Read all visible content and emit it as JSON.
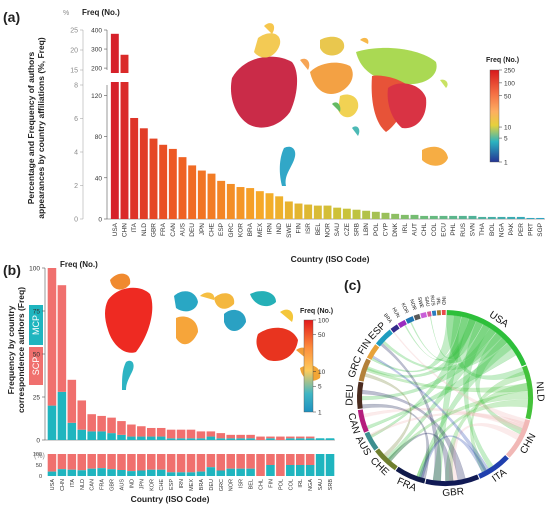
{
  "panel_a": {
    "tag": "(a)",
    "ylabel": "Percentage and Frequency of authors appearances by country affiliations (%, Freq)",
    "xlabel": "Country (ISO Code)",
    "freq_header": "Freq (No.)",
    "pct_header": "%",
    "freq_ticks": [
      "0",
      "40",
      "80",
      "120",
      "200",
      "300",
      "400"
    ],
    "pct_ticks": [
      "0",
      "2",
      "4",
      "6",
      "8",
      "15",
      "20",
      "25"
    ],
    "legend_title": "Freq (No.)",
    "legend_ticks": [
      "250",
      "100",
      "50",
      "10",
      "5",
      "1"
    ]
  },
  "panel_b": {
    "tag": "(b)",
    "ylabel": "Frequency by country correspondence authors (Freq)",
    "xlabel": "Country (ISO Code)",
    "freq_header": "Freq (No.)",
    "pct_label": "(%)",
    "freq_ticks": [
      "0",
      "25",
      "50",
      "75",
      "100"
    ],
    "pct_ticks": [
      "0",
      "50",
      "100"
    ],
    "legend_mcp": "MCP",
    "legend_scp": "SCP",
    "legend_title": "Freq (No.)",
    "legend_ticks": [
      "100",
      "50",
      "10",
      "5",
      "1"
    ]
  },
  "panel_c": {
    "tag": "(c)",
    "labels": [
      "USA",
      "NLD",
      "CHN",
      "ITA",
      "GBR",
      "FRA",
      "CHE",
      "AUS",
      "CAN",
      "DEU",
      "GRC",
      "FIN",
      "ESP",
      "BRA",
      "HUN",
      "KOR",
      "NOR",
      "SWE",
      "SAU",
      "RUS",
      "IRL",
      "IND"
    ]
  },
  "colors": {
    "mcp": "#1fb5bf",
    "scp": "#f0706e"
  },
  "chart_data": [
    {
      "type": "bar",
      "title": "",
      "xlabel": "Country (ISO Code)",
      "ylabel": "Percentage and Frequency of authors appearances by country affiliations (%, Freq)",
      "categories": [
        "USA",
        "CHN",
        "ITA",
        "NLD",
        "GBR",
        "FRA",
        "CAN",
        "AUS",
        "DEU",
        "JPN",
        "CHE",
        "ESP",
        "GRC",
        "KOR",
        "BRA",
        "MEX",
        "IRN",
        "IND",
        "SWE",
        "FIN",
        "ISR",
        "BEL",
        "NOR",
        "SAU",
        "CZE",
        "SRB",
        "LBN",
        "POL",
        "CYP",
        "DNK",
        "IRL",
        "AUT",
        "CHL",
        "COL",
        "ECU",
        "PHL",
        "RUS",
        "SVN",
        "THA",
        "BOL",
        "NGA",
        "PAK",
        "PER",
        "PRT",
        "SGP"
      ],
      "values": [
        380,
        270,
        98,
        88,
        78,
        72,
        68,
        60,
        52,
        47,
        44,
        37,
        34,
        31,
        30,
        27,
        25,
        22,
        17,
        15,
        14,
        13,
        13,
        11,
        10,
        9,
        8,
        7,
        6,
        5,
        4,
        4,
        3,
        3,
        3,
        3,
        3,
        3,
        2,
        2,
        2,
        2,
        2,
        1,
        1
      ],
      "ylim": [
        0,
        400
      ],
      "axis_break": [
        130,
        190
      ]
    },
    {
      "type": "bar",
      "title": "",
      "xlabel": "Country (ISO Code)",
      "ylabel": "Frequency by country correspondence authors (Freq)",
      "categories": [
        "USA",
        "CHN",
        "ITA",
        "NLD",
        "CAN",
        "FRA",
        "GBR",
        "AUS",
        "IND",
        "JPN",
        "KOR",
        "CHE",
        "ESP",
        "IRN",
        "MEX",
        "BRA",
        "DEU",
        "GRC",
        "NOR",
        "ISR",
        "BEL",
        "CHL",
        "FIN",
        "POL",
        "COL",
        "IRL",
        "NGA",
        "SAU",
        "SRB"
      ],
      "series": [
        {
          "name": "MCP",
          "values": [
            20,
            28,
            10,
            6,
            5,
            5,
            4,
            3,
            2,
            2,
            2,
            2,
            1,
            1,
            1,
            1,
            2,
            1,
            1,
            1,
            1,
            0,
            1,
            0,
            1,
            1,
            1,
            1,
            1
          ]
        },
        {
          "name": "SCP",
          "values": [
            80,
            62,
            25,
            17,
            10,
            9,
            9,
            8,
            7,
            6,
            5,
            5,
            5,
            5,
            5,
            4,
            3,
            3,
            2,
            2,
            2,
            2,
            1,
            2,
            1,
            1,
            1,
            0,
            0
          ]
        }
      ],
      "ylim": [
        0,
        100
      ]
    }
  ]
}
